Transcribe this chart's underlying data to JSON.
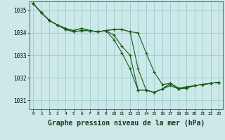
{
  "background_color": "#cce8e8",
  "grid_color": "#99cccc",
  "line_color": "#1a5c1a",
  "xlabel": "Graphe pression niveau de la mer (hPa)",
  "xlabel_fontsize": 7,
  "xlim": [
    -0.5,
    23.5
  ],
  "ylim": [
    1030.6,
    1035.4
  ],
  "yticks": [
    1031,
    1032,
    1033,
    1034,
    1035
  ],
  "xticks": [
    0,
    1,
    2,
    3,
    4,
    5,
    6,
    7,
    8,
    9,
    10,
    11,
    12,
    13,
    14,
    15,
    16,
    17,
    18,
    19,
    20,
    21,
    22,
    23
  ],
  "series": [
    [
      1035.3,
      1034.9,
      1034.55,
      1034.35,
      1034.15,
      1034.05,
      1034.1,
      1034.1,
      1034.05,
      1034.1,
      1033.7,
      1033.1,
      1032.4,
      1031.45,
      1031.45,
      1031.35,
      1031.5,
      1031.75,
      1031.5,
      1031.55,
      1031.65,
      1031.7,
      1031.75,
      1031.8
    ],
    [
      1035.3,
      1034.9,
      1034.55,
      1034.35,
      1034.15,
      1034.05,
      1034.1,
      1034.1,
      1034.05,
      1034.1,
      1033.9,
      1033.4,
      1033.0,
      1031.45,
      1031.45,
      1031.35,
      1031.5,
      1031.75,
      1031.5,
      1031.55,
      1031.65,
      1031.7,
      1031.75,
      1031.8
    ],
    [
      1035.3,
      1034.9,
      1034.55,
      1034.35,
      1034.2,
      1034.1,
      1034.2,
      1034.1,
      1034.05,
      1034.1,
      1034.15,
      1034.15,
      1034.05,
      1034.0,
      1033.1,
      1032.25,
      1031.7,
      1031.75,
      1031.55,
      1031.6,
      1031.65,
      1031.7,
      1031.75,
      1031.8
    ],
    [
      1035.3,
      1034.9,
      1034.55,
      1034.35,
      1034.2,
      1034.1,
      1034.2,
      1034.1,
      1034.05,
      1034.1,
      1034.15,
      1034.15,
      1034.05,
      1032.4,
      1031.45,
      1031.35,
      1031.5,
      1031.65,
      1031.5,
      1031.55,
      1031.65,
      1031.7,
      1031.75,
      1031.8
    ]
  ]
}
